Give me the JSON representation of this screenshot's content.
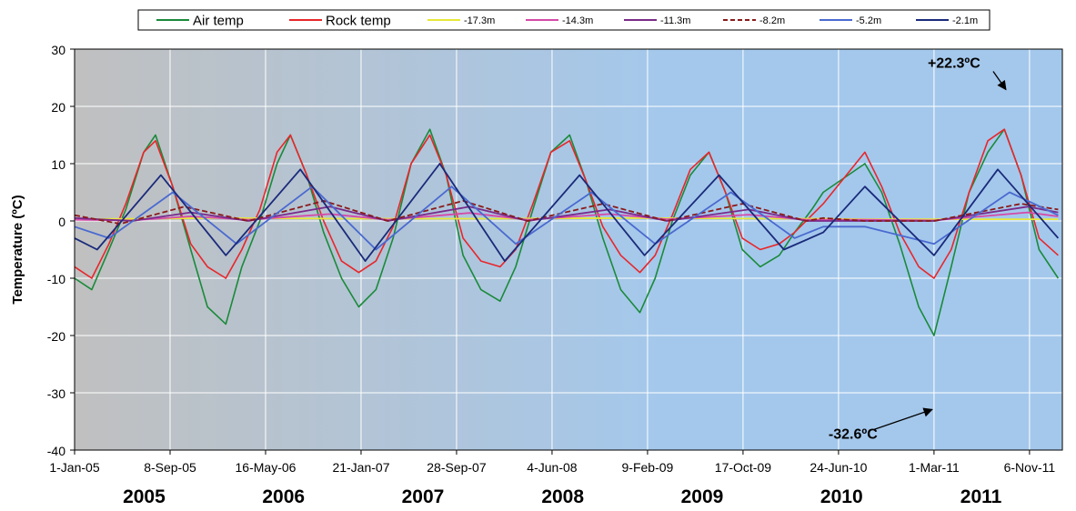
{
  "chart_data": {
    "type": "line",
    "ylabel": "Temperature (ºC)",
    "xlabel": "",
    "ylim": [
      -40,
      30
    ],
    "yticks": [
      30,
      20,
      10,
      0,
      -10,
      -20,
      -30,
      -40
    ],
    "x_ticks": [
      {
        "label": "1-Jan-05",
        "date": "2005-01-01"
      },
      {
        "label": "8-Sep-05",
        "date": "2005-09-08"
      },
      {
        "label": "16-May-06",
        "date": "2006-05-16"
      },
      {
        "label": "21-Jan-07",
        "date": "2007-01-21"
      },
      {
        "label": "28-Sep-07",
        "date": "2007-09-28"
      },
      {
        "label": "4-Jun-08",
        "date": "2008-06-04"
      },
      {
        "label": "9-Feb-09",
        "date": "2009-02-09"
      },
      {
        "label": "17-Oct-09",
        "date": "2009-10-17"
      },
      {
        "label": "24-Jun-10",
        "date": "2010-06-24"
      },
      {
        "label": "1-Mar-11",
        "date": "2011-03-01"
      },
      {
        "label": "6-Nov-11",
        "date": "2011-11-06"
      }
    ],
    "xlim": [
      "2005-01-01",
      "2012-01-31"
    ],
    "years": [
      {
        "label": "2005",
        "date": "2005-07-02"
      },
      {
        "label": "2006",
        "date": "2006-07-02"
      },
      {
        "label": "2007",
        "date": "2007-07-02"
      },
      {
        "label": "2008",
        "date": "2008-07-02"
      },
      {
        "label": "2009",
        "date": "2009-07-02"
      },
      {
        "label": "2010",
        "date": "2010-07-02"
      },
      {
        "label": "2011",
        "date": "2011-07-02"
      }
    ],
    "grid": true,
    "legend_position": "top",
    "background_gradient": [
      "#c0c0c0",
      "#a4c8ec"
    ],
    "series": [
      {
        "name": "Air temp",
        "color": "#1a8a3a",
        "style": "solid",
        "x": [
          "2005-01-01",
          "2005-02-15",
          "2005-04-01",
          "2005-05-15",
          "2005-07-01",
          "2005-08-01",
          "2005-09-15",
          "2005-11-01",
          "2005-12-15",
          "2006-02-01",
          "2006-03-15",
          "2006-05-01",
          "2006-06-15",
          "2006-07-20",
          "2006-09-01",
          "2006-10-15",
          "2006-12-01",
          "2007-01-15",
          "2007-03-01",
          "2007-04-15",
          "2007-06-01",
          "2007-07-20",
          "2007-09-01",
          "2007-10-15",
          "2007-12-01",
          "2008-01-20",
          "2008-03-01",
          "2008-04-15",
          "2008-06-01",
          "2008-07-20",
          "2008-09-01",
          "2008-10-15",
          "2008-12-01",
          "2009-01-20",
          "2009-03-01",
          "2009-04-15",
          "2009-06-01",
          "2009-07-20",
          "2009-09-01",
          "2009-10-15",
          "2009-12-01",
          "2010-01-20",
          "2010-03-01",
          "2010-04-15",
          "2010-05-15",
          "2010-09-01",
          "2010-10-15",
          "2010-12-01",
          "2011-01-20",
          "2011-03-01",
          "2011-04-15",
          "2011-06-01",
          "2011-07-20",
          "2011-09-01",
          "2011-10-15",
          "2011-12-01",
          "2012-01-20"
        ],
        "y": [
          -10,
          -12,
          -5,
          2,
          12,
          15,
          6,
          -5,
          -15,
          -18,
          -8,
          0,
          10,
          15,
          8,
          -2,
          -10,
          -15,
          -12,
          -3,
          10,
          16,
          8,
          -6,
          -12,
          -14,
          -8,
          2,
          12,
          15,
          7,
          -3,
          -12,
          -16,
          -10,
          0,
          8,
          12,
          5,
          -5,
          -8,
          -6,
          -2,
          2,
          5,
          10,
          5,
          -4,
          -15,
          -20,
          -8,
          5,
          12,
          16,
          8,
          -5,
          -10
        ]
      },
      {
        "name": "Rock temp",
        "color": "#e8262a",
        "style": "solid",
        "x": [
          "2005-01-01",
          "2005-02-15",
          "2005-04-01",
          "2005-05-15",
          "2005-07-01",
          "2005-08-01",
          "2005-09-15",
          "2005-11-01",
          "2005-12-15",
          "2006-02-01",
          "2006-03-15",
          "2006-05-01",
          "2006-06-15",
          "2006-07-20",
          "2006-09-01",
          "2006-10-15",
          "2006-12-01",
          "2007-01-15",
          "2007-03-01",
          "2007-04-15",
          "2007-06-01",
          "2007-07-20",
          "2007-09-01",
          "2007-10-15",
          "2007-12-01",
          "2008-01-20",
          "2008-03-01",
          "2008-04-15",
          "2008-06-01",
          "2008-07-20",
          "2008-09-01",
          "2008-10-15",
          "2008-12-01",
          "2009-01-20",
          "2009-03-01",
          "2009-04-15",
          "2009-06-01",
          "2009-07-20",
          "2009-09-01",
          "2009-10-15",
          "2009-12-01",
          "2010-01-20",
          "2010-03-01",
          "2010-04-15",
          "2010-05-15",
          "2010-09-01",
          "2010-10-15",
          "2010-12-01",
          "2011-01-20",
          "2011-03-01",
          "2011-04-15",
          "2011-06-01",
          "2011-07-20",
          "2011-09-01",
          "2011-10-15",
          "2011-12-01",
          "2012-01-20"
        ],
        "y": [
          -8,
          -10,
          -4,
          3,
          12,
          14,
          6,
          -4,
          -8,
          -10,
          -5,
          2,
          12,
          15,
          8,
          0,
          -7,
          -9,
          -7,
          -1,
          10,
          15,
          8,
          -3,
          -7,
          -8,
          -5,
          3,
          12,
          14,
          7,
          -1,
          -6,
          -9,
          -6,
          1,
          9,
          12,
          5,
          -3,
          -5,
          -4,
          -2,
          1,
          3,
          12,
          6,
          -2,
          -8,
          -10,
          -5,
          5,
          14,
          16,
          8,
          -3,
          -6
        ]
      },
      {
        "name": "-17.3m",
        "color": "#e8e838",
        "style": "solid",
        "x": [
          "2005-01-01",
          "2006-01-01",
          "2007-01-01",
          "2008-01-01",
          "2009-01-01",
          "2010-01-01",
          "2010-05-15",
          "2010-09-01",
          "2011-01-01",
          "2012-01-20"
        ],
        "y": [
          0.3,
          0.5,
          0.4,
          0.4,
          0.5,
          0.4,
          0.4,
          0.3,
          0.3,
          0.3
        ]
      },
      {
        "name": "-14.3m",
        "color": "#d44aa8",
        "style": "solid",
        "x": [
          "2005-01-01",
          "2005-06-01",
          "2005-11-01",
          "2006-04-01",
          "2006-11-01",
          "2007-04-01",
          "2007-11-01",
          "2008-04-01",
          "2008-11-01",
          "2009-04-01",
          "2009-11-01",
          "2010-04-01",
          "2010-05-15",
          "2010-09-01",
          "2011-03-01",
          "2011-11-01",
          "2012-01-20"
        ],
        "y": [
          0.2,
          0.1,
          0.8,
          0.2,
          1.2,
          0.2,
          1.4,
          0.2,
          1.2,
          0.3,
          1.1,
          0.2,
          0.2,
          0.2,
          0.1,
          1.5,
          0.8
        ]
      },
      {
        "name": "-11.3m",
        "color": "#7a2a8a",
        "style": "solid",
        "x": [
          "2005-01-01",
          "2005-06-01",
          "2005-11-01",
          "2006-04-01",
          "2006-11-01",
          "2007-04-01",
          "2007-11-01",
          "2008-04-01",
          "2008-11-01",
          "2009-04-01",
          "2009-11-01",
          "2010-04-01",
          "2010-05-15",
          "2010-09-01",
          "2011-03-01",
          "2011-11-01",
          "2012-01-20"
        ],
        "y": [
          0.5,
          0.0,
          1.5,
          0.0,
          2.5,
          0.0,
          2.5,
          0.0,
          2.0,
          0.0,
          2.0,
          0.0,
          0.0,
          0.0,
          0.0,
          2.5,
          1.5
        ]
      },
      {
        "name": "-8.2m",
        "color": "#8a1a1a",
        "style": "dashed",
        "x": [
          "2005-01-01",
          "2005-05-01",
          "2005-10-15",
          "2006-04-01",
          "2006-10-15",
          "2007-04-01",
          "2007-10-15",
          "2008-04-01",
          "2008-10-15",
          "2009-04-01",
          "2009-10-15",
          "2010-04-01",
          "2010-05-15",
          "2010-09-01",
          "2011-03-01",
          "2011-10-15",
          "2012-01-20"
        ],
        "y": [
          1.0,
          -0.5,
          2.5,
          0.0,
          3.5,
          0.0,
          3.5,
          0.0,
          3.0,
          0.0,
          3.0,
          0.0,
          0.5,
          0.0,
          0.0,
          3.0,
          2.0
        ]
      },
      {
        "name": "-5.2m",
        "color": "#4a6ad0",
        "style": "solid",
        "x": [
          "2005-01-01",
          "2005-04-01",
          "2005-09-15",
          "2006-03-01",
          "2006-09-15",
          "2007-03-01",
          "2007-09-15",
          "2008-03-01",
          "2008-09-15",
          "2009-03-01",
          "2009-09-15",
          "2010-03-01",
          "2010-05-15",
          "2010-09-01",
          "2011-03-01",
          "2011-09-15",
          "2012-01-20"
        ],
        "y": [
          -1,
          -3,
          5,
          -4,
          6,
          -5,
          6,
          -4,
          5,
          -4,
          5,
          -3,
          -1,
          -1,
          -4,
          5,
          1
        ]
      },
      {
        "name": "-2.1m",
        "color": "#1a2a7a",
        "style": "solid",
        "x": [
          "2005-01-01",
          "2005-03-01",
          "2005-08-15",
          "2006-02-01",
          "2006-08-15",
          "2007-02-01",
          "2007-08-15",
          "2008-02-01",
          "2008-08-15",
          "2009-02-01",
          "2009-08-15",
          "2010-02-01",
          "2010-05-15",
          "2010-09-01",
          "2011-03-01",
          "2011-08-15",
          "2012-01-20"
        ],
        "y": [
          -3,
          -5,
          8,
          -6,
          9,
          -7,
          10,
          -7,
          8,
          -6,
          8,
          -5,
          -2,
          6,
          -6,
          9,
          -3
        ]
      }
    ],
    "annotations": [
      {
        "text": "+22.3ºC",
        "date": "2011-09-10",
        "value": 22.3
      },
      {
        "text": "-32.6ºC",
        "date": "2011-03-01",
        "value": -32.6
      }
    ]
  }
}
